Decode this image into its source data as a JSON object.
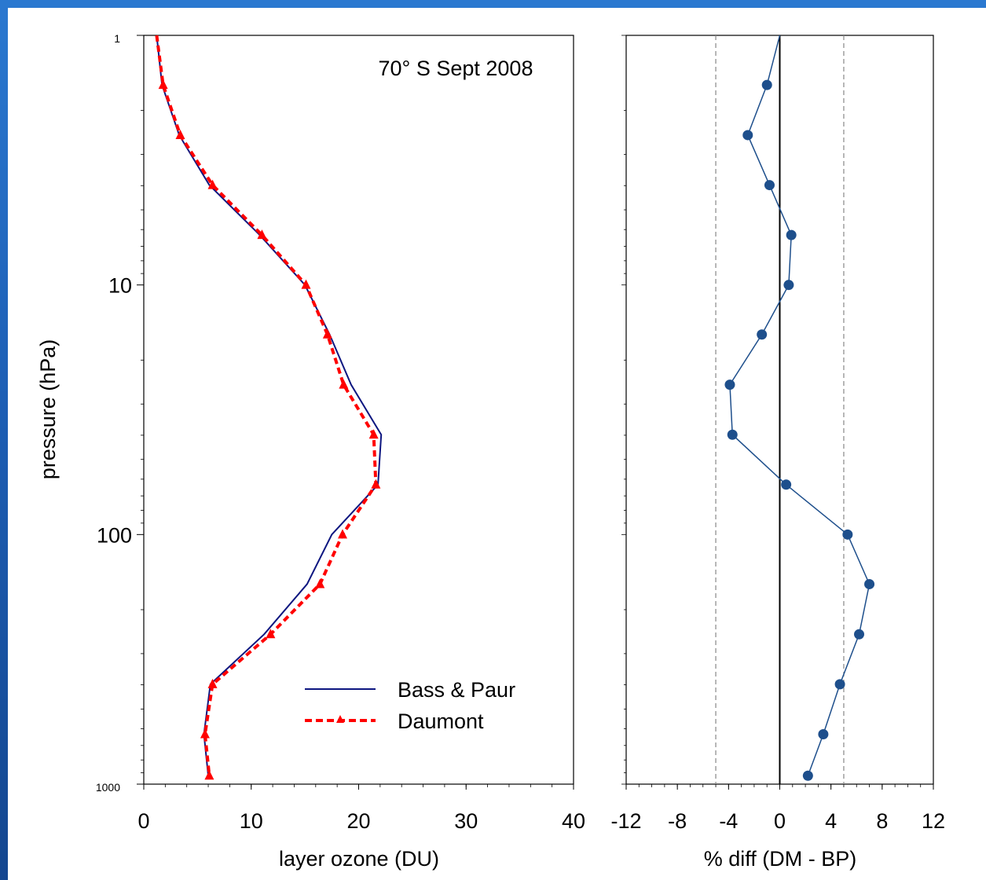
{
  "chart_data": [
    {
      "type": "line",
      "annotation": "70° S Sept 2008",
      "xlabel": "layer ozone (DU)",
      "ylabel": "pressure (hPa)",
      "xlim": [
        0,
        40
      ],
      "xticks": [
        "0",
        "10",
        "20",
        "30",
        "40"
      ],
      "ylim": [
        1,
        1000
      ],
      "yscale": "log",
      "yticks": [
        {
          "value": 1,
          "label": "1"
        },
        {
          "value": 10,
          "label": "10"
        },
        {
          "value": 100,
          "label": "100"
        },
        {
          "value": 1000,
          "label": "1000"
        }
      ],
      "legend_position": "bottom-right",
      "series": [
        {
          "name": "Bass & Paur",
          "color": "#0d1680",
          "style": "solid",
          "points": [
            {
              "x": 1.2,
              "y": 1.0
            },
            {
              "x": 1.7,
              "y": 1.58
            },
            {
              "x": 3.3,
              "y": 2.51
            },
            {
              "x": 6.1,
              "y": 3.98
            },
            {
              "x": 10.8,
              "y": 6.31
            },
            {
              "x": 15.0,
              "y": 10.0
            },
            {
              "x": 17.3,
              "y": 15.8
            },
            {
              "x": 19.3,
              "y": 25.1
            },
            {
              "x": 22.1,
              "y": 39.8
            },
            {
              "x": 21.8,
              "y": 63.1
            },
            {
              "x": 17.5,
              "y": 100
            },
            {
              "x": 15.2,
              "y": 158
            },
            {
              "x": 11.2,
              "y": 251
            },
            {
              "x": 6.2,
              "y": 398
            },
            {
              "x": 5.6,
              "y": 631
            },
            {
              "x": 6.0,
              "y": 925
            }
          ]
        },
        {
          "name": "Daumont",
          "color": "#ff0000",
          "style": "dashed",
          "marker": "triangle",
          "points": [
            {
              "x": 1.2,
              "y": 1.0
            },
            {
              "x": 1.8,
              "y": 1.58
            },
            {
              "x": 3.4,
              "y": 2.51
            },
            {
              "x": 6.4,
              "y": 3.98
            },
            {
              "x": 11.0,
              "y": 6.31
            },
            {
              "x": 15.1,
              "y": 10.0
            },
            {
              "x": 17.1,
              "y": 15.8
            },
            {
              "x": 18.6,
              "y": 25.1
            },
            {
              "x": 21.4,
              "y": 39.8
            },
            {
              "x": 21.6,
              "y": 63.1
            },
            {
              "x": 18.5,
              "y": 100
            },
            {
              "x": 16.4,
              "y": 158
            },
            {
              "x": 11.8,
              "y": 251
            },
            {
              "x": 6.4,
              "y": 398
            },
            {
              "x": 5.7,
              "y": 631
            },
            {
              "x": 6.1,
              "y": 925
            }
          ]
        }
      ]
    },
    {
      "type": "line",
      "xlabel": "% diff (DM - BP)",
      "xlim": [
        -12,
        12
      ],
      "xticks": [
        "-12",
        "-8",
        "-4",
        "0",
        "4",
        "8",
        "12"
      ],
      "ylim": [
        1,
        1000
      ],
      "yscale": "log",
      "reference_lines": [
        {
          "x": 0,
          "style": "solid",
          "color": "#000000"
        },
        {
          "x": -5,
          "style": "dashed",
          "color": "#888888"
        },
        {
          "x": 5,
          "style": "dashed",
          "color": "#888888"
        }
      ],
      "series": [
        {
          "color": "#1e4f8c",
          "marker": "circle",
          "points": [
            {
              "x": 0.0,
              "y": 1.0
            },
            {
              "x": -1.0,
              "y": 1.58
            },
            {
              "x": -2.5,
              "y": 2.51
            },
            {
              "x": -0.8,
              "y": 3.98
            },
            {
              "x": 0.9,
              "y": 6.31
            },
            {
              "x": 0.7,
              "y": 10.0
            },
            {
              "x": -1.4,
              "y": 15.8
            },
            {
              "x": -3.9,
              "y": 25.1
            },
            {
              "x": -3.7,
              "y": 39.8
            },
            {
              "x": 0.5,
              "y": 63.1
            },
            {
              "x": 5.3,
              "y": 100
            },
            {
              "x": 7.0,
              "y": 158
            },
            {
              "x": 6.2,
              "y": 251
            },
            {
              "x": 4.7,
              "y": 398
            },
            {
              "x": 3.4,
              "y": 631
            },
            {
              "x": 2.2,
              "y": 925
            }
          ]
        }
      ]
    }
  ]
}
